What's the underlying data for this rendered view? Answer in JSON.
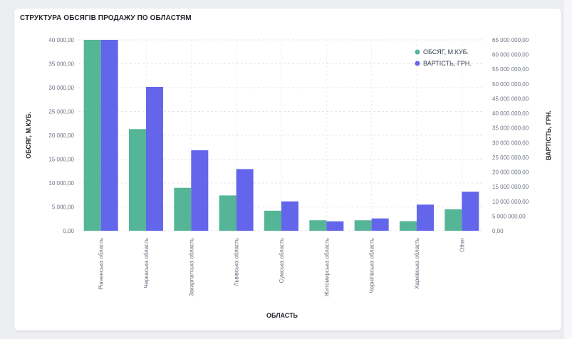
{
  "chart_data": {
    "type": "bar",
    "title": "СТРУКТУРА ОБСЯГІВ ПРОДАЖУ ПО ОБЛАСТЯМ",
    "xlabel": "ОБЛАСТЬ",
    "ylabel_left": "ОБСЯГ, М.КУБ.",
    "ylabel_right": "ВАРТІСТЬ, ГРН.",
    "ylim_left": [
      0,
      40000
    ],
    "ylim_right": [
      0,
      65000000
    ],
    "yticks_left": [
      "0,00",
      "5 000,00",
      "10 000,00",
      "15 000,00",
      "20 000,00",
      "25 000,00",
      "30 000,00",
      "35 000,00",
      "40 000,00"
    ],
    "yticks_right": [
      "0,00",
      "5 000 000,00",
      "10 000 000,00",
      "15 000 000,00",
      "20 000 000,00",
      "25 000 000,00",
      "30 000 000,00",
      "35 000 000,00",
      "40 000 000,00",
      "45 000 000,00",
      "50 000 000,00",
      "55 000 000,00",
      "60 000 000,00",
      "65 000 000,00"
    ],
    "categories": [
      "Рівненська область",
      "Черкаська область",
      "Закарпатська область",
      "Львівська область",
      "Сумська область",
      "Житомирська область",
      "Чернігівська область",
      "Харківська область",
      "Other"
    ],
    "series": [
      {
        "name": "ОБСЯГ, М.КУБ.",
        "axis": "left",
        "color": "#55b597",
        "values": [
          41000,
          21300,
          9000,
          7400,
          4200,
          2200,
          2200,
          2000,
          4500
        ]
      },
      {
        "name": "ВАРТІСТЬ, ГРН.",
        "axis": "right",
        "color": "#6366ea",
        "values": [
          66000000,
          49000000,
          27400000,
          21000000,
          10000000,
          3200000,
          4200000,
          8900000,
          13300000
        ]
      }
    ],
    "grid": true,
    "legend": "top-right"
  }
}
